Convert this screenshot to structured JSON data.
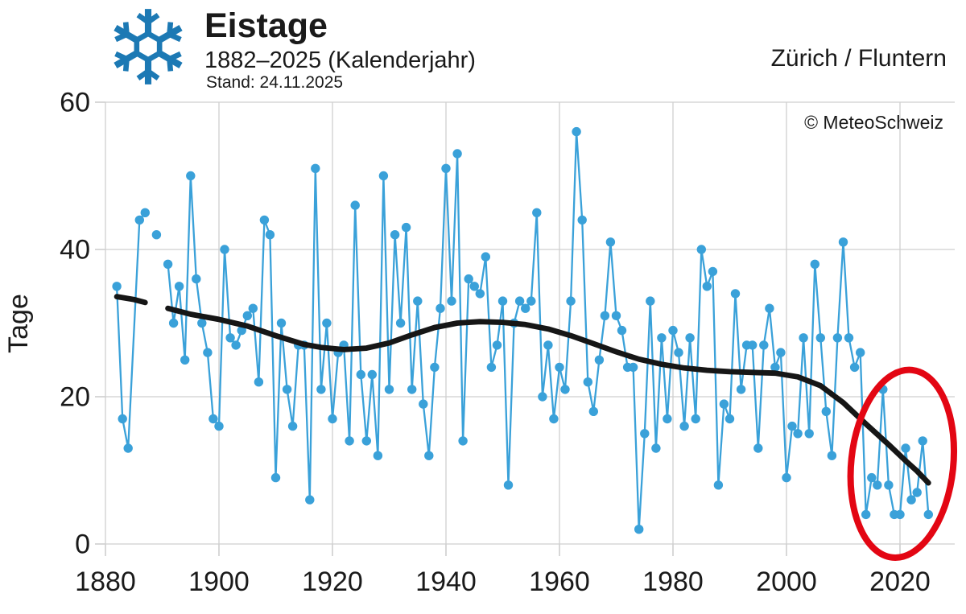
{
  "header": {
    "title": "Eistage",
    "subtitle": "1882–2025 (Kalenderjahr)",
    "stand": "Stand: 24.11.2025",
    "station": "Zürich / Fluntern",
    "copyright": "© MeteoSchweiz",
    "icon": "snowflake-icon"
  },
  "colors": {
    "series_blue": "#3aa1d9",
    "trend_black": "#161616",
    "highlight_red": "#e30613",
    "snowflake_blue": "#1c79b4",
    "grid_gray": "#cfcfcf",
    "text_dark": "#1a1a1a"
  },
  "chart_data": {
    "type": "line",
    "title": "Eistage 1882–2025 (Kalenderjahr), Zürich / Fluntern",
    "ylabel": "Tage",
    "xlabel": "",
    "x_ticks": [
      1880,
      1900,
      1920,
      1940,
      1960,
      1980,
      2000,
      2020
    ],
    "y_ticks": [
      0,
      20,
      40,
      60
    ],
    "xlim": [
      1878,
      2027.5
    ],
    "ylim": [
      0,
      60
    ],
    "grid": true,
    "legend_position": "none",
    "start_year": 1882,
    "end_year": 2025,
    "missing_years": [
      1885,
      1888,
      1890
    ],
    "values": [
      35,
      17,
      13,
      null,
      44,
      45,
      null,
      42,
      null,
      38,
      30,
      35,
      25,
      50,
      36,
      30,
      26,
      17,
      16,
      40,
      28,
      27,
      29,
      31,
      32,
      22,
      44,
      42,
      9,
      30,
      21,
      16,
      27,
      27,
      6,
      51,
      21,
      30,
      17,
      26,
      27,
      14,
      46,
      23,
      14,
      23,
      12,
      50,
      21,
      42,
      30,
      43,
      21,
      33,
      19,
      12,
      24,
      32,
      51,
      33,
      53,
      14,
      36,
      35,
      34,
      39,
      24,
      27,
      33,
      8,
      30,
      33,
      32,
      33,
      45,
      20,
      27,
      17,
      24,
      21,
      33,
      56,
      44,
      22,
      18,
      25,
      31,
      41,
      31,
      29,
      24,
      24,
      2,
      15,
      33,
      13,
      28,
      17,
      29,
      26,
      16,
      28,
      17,
      40,
      35,
      37,
      8,
      19,
      17,
      34,
      21,
      27,
      27,
      13,
      27,
      32,
      24,
      26,
      9,
      16,
      15,
      28,
      15,
      38,
      28,
      18,
      12,
      28,
      41,
      28,
      24,
      26,
      4,
      9,
      8,
      21,
      8,
      4,
      4,
      13,
      6,
      7,
      14,
      4
    ],
    "line_segments": [
      [
        1882,
        1887
      ],
      [
        1889,
        1889
      ],
      [
        1891,
        2025
      ]
    ],
    "trend_line_points": {
      "segments": [
        [
          [
            1882,
            33.6
          ],
          [
            1885,
            33.2
          ],
          [
            1887,
            32.8
          ]
        ],
        [
          [
            1891,
            32.0
          ],
          [
            1895,
            31.2
          ],
          [
            1900,
            30.5
          ],
          [
            1905,
            29.6
          ],
          [
            1910,
            28.3
          ],
          [
            1915,
            27.1
          ],
          [
            1918,
            26.7
          ],
          [
            1922,
            26.4
          ],
          [
            1926,
            26.6
          ],
          [
            1930,
            27.3
          ],
          [
            1934,
            28.4
          ],
          [
            1938,
            29.4
          ],
          [
            1942,
            30.0
          ],
          [
            1946,
            30.2
          ],
          [
            1950,
            30.1
          ],
          [
            1954,
            29.8
          ],
          [
            1958,
            29.2
          ],
          [
            1962,
            28.3
          ],
          [
            1966,
            27.2
          ],
          [
            1970,
            26.1
          ],
          [
            1974,
            25.1
          ],
          [
            1978,
            24.4
          ],
          [
            1982,
            23.9
          ],
          [
            1986,
            23.6
          ],
          [
            1990,
            23.4
          ],
          [
            1994,
            23.3
          ],
          [
            1998,
            23.2
          ],
          [
            2002,
            22.7
          ],
          [
            2006,
            21.5
          ],
          [
            2010,
            19.2
          ],
          [
            2014,
            16.3
          ],
          [
            2018,
            13.5
          ],
          [
            2021,
            11.3
          ],
          [
            2023,
            9.9
          ],
          [
            2025,
            8.3
          ]
        ]
      ]
    },
    "highlight_ellipse": {
      "center_year": 2020.4,
      "center_value": 10.9,
      "rx_years": 9,
      "ry_values": 12.8,
      "rotation_deg": 6
    }
  }
}
